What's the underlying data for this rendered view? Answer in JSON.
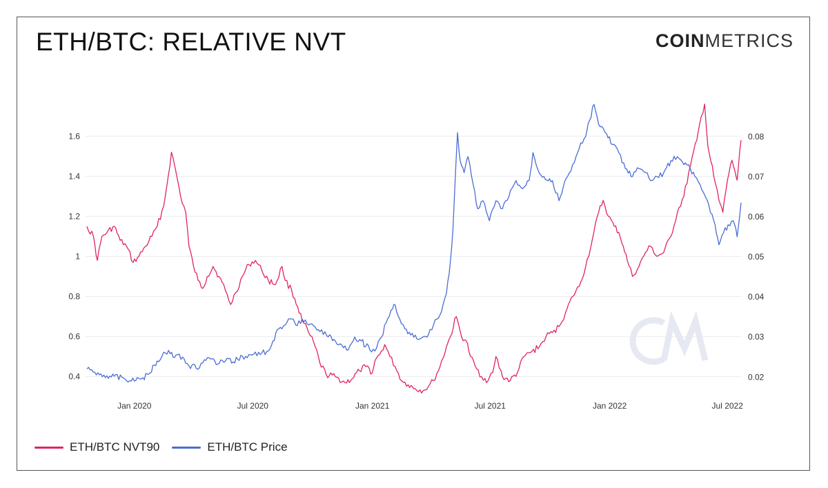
{
  "title": "ETH/BTC: RELATIVE NVT",
  "logo": {
    "bold": "COIN",
    "light": "METRICS"
  },
  "colors": {
    "nvt": "#e0245e",
    "price": "#4a6cd4",
    "grid": "#ececec",
    "watermark": "#e6e9f2"
  },
  "legend": [
    {
      "label": "ETH/BTC NVT90",
      "color": "#e0245e"
    },
    {
      "label": "ETH/BTC Price",
      "color": "#4a6cd4"
    }
  ],
  "chart_data": {
    "type": "line",
    "x_ticks": [
      {
        "label": "Jan 2020",
        "date": "2020-01-01"
      },
      {
        "label": "Jul 2020",
        "date": "2020-07-01"
      },
      {
        "label": "Jan 2021",
        "date": "2021-01-01"
      },
      {
        "label": "Jul 2021",
        "date": "2021-07-01"
      },
      {
        "label": "Jan 2022",
        "date": "2022-01-01"
      },
      {
        "label": "Jul 2022",
        "date": "2022-07-01"
      }
    ],
    "x_range": [
      "2019-10-20",
      "2022-07-22"
    ],
    "y_left": {
      "ticks": [
        0.4,
        0.6,
        0.8,
        1,
        1.2,
        1.4,
        1.6
      ],
      "tick_labels": [
        "0.4",
        "0.6",
        "0.8",
        "1",
        "1.2",
        "1.4",
        "1.6"
      ],
      "range": [
        0.33,
        1.78
      ]
    },
    "y_right": {
      "ticks": [
        0.02,
        0.03,
        0.04,
        0.05,
        0.06,
        0.07,
        0.08
      ],
      "tick_labels": [
        "0.02",
        "0.03",
        "0.04",
        "0.05",
        "0.06",
        "0.07",
        "0.08"
      ],
      "range": [
        0.0166,
        0.0891
      ]
    },
    "grid": true,
    "legend_position": "bottom-left",
    "series": [
      {
        "name": "ETH/BTC NVT90",
        "axis": "left",
        "points": [
          [
            "2019-10-20",
            1.15
          ],
          [
            "2019-10-30",
            1.1
          ],
          [
            "2019-11-05",
            0.98
          ],
          [
            "2019-11-12",
            1.1
          ],
          [
            "2019-11-20",
            1.12
          ],
          [
            "2019-12-01",
            1.15
          ],
          [
            "2019-12-10",
            1.08
          ],
          [
            "2019-12-20",
            1.05
          ],
          [
            "2019-12-30",
            0.97
          ],
          [
            "2020-01-08",
            1.0
          ],
          [
            "2020-01-18",
            1.05
          ],
          [
            "2020-01-28",
            1.1
          ],
          [
            "2020-02-05",
            1.15
          ],
          [
            "2020-02-15",
            1.25
          ],
          [
            "2020-02-22",
            1.4
          ],
          [
            "2020-02-27",
            1.52
          ],
          [
            "2020-03-05",
            1.42
          ],
          [
            "2020-03-12",
            1.3
          ],
          [
            "2020-03-20",
            1.22
          ],
          [
            "2020-03-25",
            1.05
          ],
          [
            "2020-04-01",
            0.95
          ],
          [
            "2020-04-08",
            0.88
          ],
          [
            "2020-04-15",
            0.84
          ],
          [
            "2020-04-22",
            0.9
          ],
          [
            "2020-05-01",
            0.95
          ],
          [
            "2020-05-10",
            0.9
          ],
          [
            "2020-05-20",
            0.83
          ],
          [
            "2020-05-28",
            0.76
          ],
          [
            "2020-06-05",
            0.82
          ],
          [
            "2020-06-15",
            0.9
          ],
          [
            "2020-06-25",
            0.96
          ],
          [
            "2020-07-05",
            0.98
          ],
          [
            "2020-07-15",
            0.93
          ],
          [
            "2020-07-25",
            0.88
          ],
          [
            "2020-08-05",
            0.86
          ],
          [
            "2020-08-15",
            0.95
          ],
          [
            "2020-08-20",
            0.88
          ],
          [
            "2020-08-30",
            0.83
          ],
          [
            "2020-09-08",
            0.75
          ],
          [
            "2020-09-15",
            0.68
          ],
          [
            "2020-09-25",
            0.62
          ],
          [
            "2020-10-05",
            0.55
          ],
          [
            "2020-10-12",
            0.47
          ],
          [
            "2020-10-22",
            0.41
          ],
          [
            "2020-11-05",
            0.4
          ],
          [
            "2020-11-20",
            0.37
          ],
          [
            "2020-12-01",
            0.39
          ],
          [
            "2020-12-12",
            0.43
          ],
          [
            "2020-12-22",
            0.45
          ],
          [
            "2021-01-01",
            0.42
          ],
          [
            "2021-01-05",
            0.48
          ],
          [
            "2021-01-12",
            0.51
          ],
          [
            "2021-01-20",
            0.56
          ],
          [
            "2021-01-28",
            0.5
          ],
          [
            "2021-02-05",
            0.45
          ],
          [
            "2021-02-15",
            0.38
          ],
          [
            "2021-02-25",
            0.36
          ],
          [
            "2021-03-08",
            0.34
          ],
          [
            "2021-03-20",
            0.33
          ],
          [
            "2021-03-28",
            0.35
          ],
          [
            "2021-04-05",
            0.38
          ],
          [
            "2021-04-15",
            0.45
          ],
          [
            "2021-04-25",
            0.55
          ],
          [
            "2021-05-01",
            0.6
          ],
          [
            "2021-05-10",
            0.7
          ],
          [
            "2021-05-18",
            0.6
          ],
          [
            "2021-05-25",
            0.58
          ],
          [
            "2021-06-01",
            0.5
          ],
          [
            "2021-06-10",
            0.44
          ],
          [
            "2021-06-18",
            0.4
          ],
          [
            "2021-06-28",
            0.38
          ],
          [
            "2021-07-05",
            0.42
          ],
          [
            "2021-07-10",
            0.5
          ],
          [
            "2021-07-20",
            0.4
          ],
          [
            "2021-08-01",
            0.38
          ],
          [
            "2021-08-12",
            0.42
          ],
          [
            "2021-08-22",
            0.5
          ],
          [
            "2021-09-01",
            0.52
          ],
          [
            "2021-09-15",
            0.55
          ],
          [
            "2021-09-25",
            0.6
          ],
          [
            "2021-10-05",
            0.62
          ],
          [
            "2021-10-15",
            0.65
          ],
          [
            "2021-10-25",
            0.72
          ],
          [
            "2021-11-05",
            0.8
          ],
          [
            "2021-11-15",
            0.85
          ],
          [
            "2021-11-25",
            0.95
          ],
          [
            "2021-12-05",
            1.08
          ],
          [
            "2021-12-15",
            1.22
          ],
          [
            "2021-12-22",
            1.28
          ],
          [
            "2021-12-30",
            1.2
          ],
          [
            "2022-01-08",
            1.15
          ],
          [
            "2022-01-15",
            1.12
          ],
          [
            "2022-01-22",
            1.05
          ],
          [
            "2022-01-28",
            0.98
          ],
          [
            "2022-02-05",
            0.9
          ],
          [
            "2022-02-15",
            0.95
          ],
          [
            "2022-02-25",
            1.02
          ],
          [
            "2022-03-05",
            1.05
          ],
          [
            "2022-03-15",
            1.0
          ],
          [
            "2022-03-25",
            1.02
          ],
          [
            "2022-04-05",
            1.1
          ],
          [
            "2022-04-15",
            1.22
          ],
          [
            "2022-04-25",
            1.3
          ],
          [
            "2022-05-05",
            1.45
          ],
          [
            "2022-05-15",
            1.58
          ],
          [
            "2022-05-22",
            1.7
          ],
          [
            "2022-05-27",
            1.76
          ],
          [
            "2022-06-01",
            1.55
          ],
          [
            "2022-06-10",
            1.4
          ],
          [
            "2022-06-18",
            1.28
          ],
          [
            "2022-06-24",
            1.22
          ],
          [
            "2022-07-01",
            1.38
          ],
          [
            "2022-07-08",
            1.48
          ],
          [
            "2022-07-13",
            1.42
          ],
          [
            "2022-07-16",
            1.38
          ],
          [
            "2022-07-22",
            1.58
          ]
        ]
      },
      {
        "name": "ETH/BTC Price",
        "axis": "right",
        "points": [
          [
            "2019-10-20",
            0.022
          ],
          [
            "2019-11-01",
            0.0212
          ],
          [
            "2019-11-15",
            0.0205
          ],
          [
            "2019-12-01",
            0.0202
          ],
          [
            "2019-12-15",
            0.0198
          ],
          [
            "2020-01-01",
            0.019
          ],
          [
            "2020-01-12",
            0.0196
          ],
          [
            "2020-01-25",
            0.021
          ],
          [
            "2020-02-05",
            0.024
          ],
          [
            "2020-02-15",
            0.0262
          ],
          [
            "2020-02-25",
            0.0258
          ],
          [
            "2020-03-05",
            0.0255
          ],
          [
            "2020-03-15",
            0.025
          ],
          [
            "2020-03-25",
            0.0228
          ],
          [
            "2020-04-05",
            0.0222
          ],
          [
            "2020-04-15",
            0.0235
          ],
          [
            "2020-04-25",
            0.0248
          ],
          [
            "2020-05-08",
            0.0232
          ],
          [
            "2020-05-20",
            0.024
          ],
          [
            "2020-06-01",
            0.0238
          ],
          [
            "2020-06-15",
            0.0252
          ],
          [
            "2020-06-30",
            0.0255
          ],
          [
            "2020-07-15",
            0.026
          ],
          [
            "2020-07-25",
            0.0265
          ],
          [
            "2020-08-01",
            0.029
          ],
          [
            "2020-08-10",
            0.032
          ],
          [
            "2020-08-20",
            0.033
          ],
          [
            "2020-08-30",
            0.0345
          ],
          [
            "2020-09-05",
            0.033
          ],
          [
            "2020-09-15",
            0.0345
          ],
          [
            "2020-09-25",
            0.033
          ],
          [
            "2020-10-05",
            0.0325
          ],
          [
            "2020-10-15",
            0.0318
          ],
          [
            "2020-10-25",
            0.03
          ],
          [
            "2020-11-05",
            0.029
          ],
          [
            "2020-11-15",
            0.028
          ],
          [
            "2020-11-25",
            0.0268
          ],
          [
            "2020-12-05",
            0.03
          ],
          [
            "2020-12-15",
            0.029
          ],
          [
            "2020-12-28",
            0.0268
          ],
          [
            "2021-01-05",
            0.0265
          ],
          [
            "2021-01-15",
            0.03
          ],
          [
            "2021-01-22",
            0.0335
          ],
          [
            "2021-02-01",
            0.037
          ],
          [
            "2021-02-05",
            0.038
          ],
          [
            "2021-02-12",
            0.0345
          ],
          [
            "2021-02-20",
            0.032
          ],
          [
            "2021-03-01",
            0.0305
          ],
          [
            "2021-03-15",
            0.0295
          ],
          [
            "2021-03-28",
            0.0305
          ],
          [
            "2021-04-05",
            0.033
          ],
          [
            "2021-04-15",
            0.0355
          ],
          [
            "2021-04-25",
            0.041
          ],
          [
            "2021-05-01",
            0.049
          ],
          [
            "2021-05-05",
            0.057
          ],
          [
            "2021-05-12",
            0.081
          ],
          [
            "2021-05-16",
            0.074
          ],
          [
            "2021-05-22",
            0.071
          ],
          [
            "2021-05-28",
            0.075
          ],
          [
            "2021-06-05",
            0.068
          ],
          [
            "2021-06-12",
            0.062
          ],
          [
            "2021-06-20",
            0.064
          ],
          [
            "2021-06-30",
            0.059
          ],
          [
            "2021-07-10",
            0.064
          ],
          [
            "2021-07-20",
            0.062
          ],
          [
            "2021-07-30",
            0.065
          ],
          [
            "2021-08-10",
            0.069
          ],
          [
            "2021-08-20",
            0.067
          ],
          [
            "2021-08-30",
            0.069
          ],
          [
            "2021-09-05",
            0.076
          ],
          [
            "2021-09-12",
            0.072
          ],
          [
            "2021-09-22",
            0.07
          ],
          [
            "2021-10-05",
            0.069
          ],
          [
            "2021-10-15",
            0.064
          ],
          [
            "2021-10-28",
            0.07
          ],
          [
            "2021-11-05",
            0.073
          ],
          [
            "2021-11-15",
            0.077
          ],
          [
            "2021-11-25",
            0.08
          ],
          [
            "2021-12-01",
            0.084
          ],
          [
            "2021-12-08",
            0.088
          ],
          [
            "2021-12-15",
            0.083
          ],
          [
            "2021-12-25",
            0.081
          ],
          [
            "2022-01-05",
            0.078
          ],
          [
            "2022-01-15",
            0.076
          ],
          [
            "2022-01-25",
            0.072
          ],
          [
            "2022-02-05",
            0.07
          ],
          [
            "2022-02-15",
            0.072
          ],
          [
            "2022-02-25",
            0.071
          ],
          [
            "2022-03-05",
            0.069
          ],
          [
            "2022-03-15",
            0.07
          ],
          [
            "2022-03-25",
            0.071
          ],
          [
            "2022-04-05",
            0.074
          ],
          [
            "2022-04-15",
            0.075
          ],
          [
            "2022-04-25",
            0.073
          ],
          [
            "2022-05-05",
            0.072
          ],
          [
            "2022-05-12",
            0.07
          ],
          [
            "2022-05-20",
            0.068
          ],
          [
            "2022-05-28",
            0.065
          ],
          [
            "2022-06-05",
            0.061
          ],
          [
            "2022-06-12",
            0.058
          ],
          [
            "2022-06-18",
            0.053
          ],
          [
            "2022-06-25",
            0.056
          ],
          [
            "2022-07-02",
            0.058
          ],
          [
            "2022-07-10",
            0.059
          ],
          [
            "2022-07-16",
            0.055
          ],
          [
            "2022-07-22",
            0.0635
          ]
        ]
      }
    ]
  }
}
